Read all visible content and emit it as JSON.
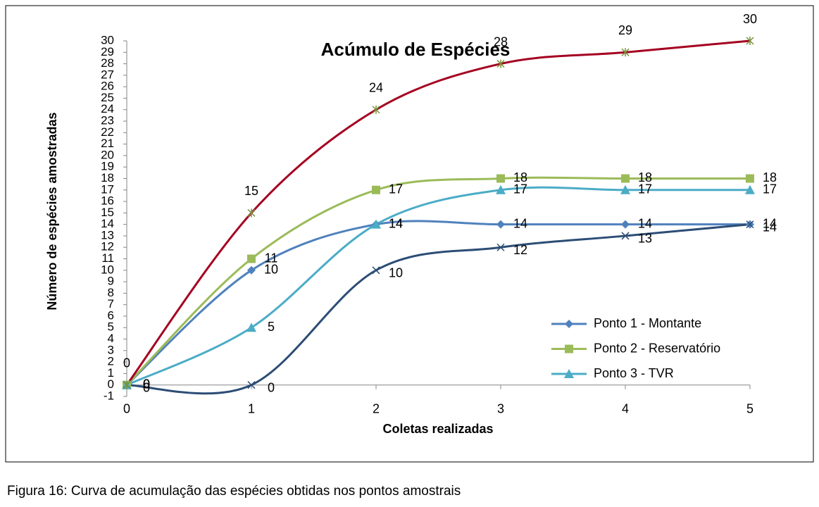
{
  "chart_data": {
    "type": "line",
    "title": "Acúmulo de Espécies",
    "x_label": "Coletas realizadas",
    "y_label": "Número de espécies amostradas",
    "x": [
      0,
      1,
      2,
      3,
      4,
      5
    ],
    "xlim": [
      0,
      5
    ],
    "xticks": [
      0,
      1,
      2,
      3,
      4,
      5
    ],
    "ylim": [
      -1,
      30
    ],
    "yticks": [
      -1,
      0,
      1,
      2,
      3,
      4,
      5,
      6,
      7,
      8,
      9,
      10,
      11,
      12,
      13,
      14,
      15,
      16,
      17,
      18,
      19,
      20,
      21,
      22,
      23,
      24,
      25,
      26,
      27,
      28,
      29,
      30
    ],
    "smooth": true,
    "legend": "bottom-right",
    "series": [
      {
        "name": "Ponto 1 - Montante",
        "color": "#4f81bd",
        "marker": "diamond",
        "values": [
          0,
          10,
          14,
          14,
          14,
          14
        ]
      },
      {
        "name": "Ponto 2 - Reservatório",
        "color": "#9bbb59",
        "marker": "square",
        "values": [
          0,
          11,
          17,
          18,
          18,
          18
        ]
      },
      {
        "name": "Ponto 3 - TVR",
        "color": "#4bacc6",
        "marker": "triangle",
        "values": [
          0,
          5,
          14,
          17,
          17,
          17
        ]
      },
      {
        "color": "#2c4d75",
        "marker": "x",
        "values": [
          0,
          0,
          10,
          12,
          13,
          14
        ]
      },
      {
        "color": "#a50021",
        "marker": "star",
        "values": [
          0,
          15,
          24,
          28,
          29,
          30
        ]
      }
    ]
  },
  "caption": "Figura 16: Curva de acumulação das espécies obtidas nos pontos amostrais"
}
